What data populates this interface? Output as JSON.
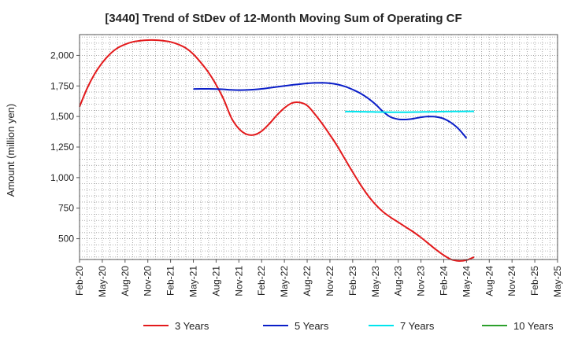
{
  "chart_data": {
    "type": "line",
    "title": "[3440]  Trend of StDev of 12-Month Moving Sum of Operating CF",
    "xlabel": "",
    "ylabel": "Amount (million yen)",
    "ylim": [
      330,
      2170
    ],
    "yticks": [
      500,
      750,
      1000,
      1250,
      1500,
      1750,
      2000
    ],
    "ytick_labels": [
      "500",
      "750",
      "1,000",
      "1,250",
      "1,500",
      "1,750",
      "2,000"
    ],
    "xticks": [
      "Feb-20",
      "May-20",
      "Aug-20",
      "Nov-20",
      "Feb-21",
      "May-21",
      "Aug-21",
      "Nov-21",
      "Feb-22",
      "May-22",
      "Aug-22",
      "Nov-22",
      "Feb-23",
      "May-23",
      "Aug-23",
      "Nov-23",
      "Feb-24",
      "May-24",
      "Aug-24",
      "Nov-24",
      "Feb-25",
      "May-25"
    ],
    "grid": true,
    "legend_position": "bottom",
    "series": [
      {
        "name": "3 Years",
        "color": "#e31a1c",
        "points": [
          [
            0,
            1580
          ],
          [
            1,
            1730
          ],
          [
            2,
            1850
          ],
          [
            3,
            1940
          ],
          [
            4,
            2010
          ],
          [
            5,
            2060
          ],
          [
            6,
            2090
          ],
          [
            7,
            2110
          ],
          [
            8,
            2120
          ],
          [
            9,
            2125
          ],
          [
            10,
            2125
          ],
          [
            11,
            2120
          ],
          [
            12,
            2110
          ],
          [
            13,
            2090
          ],
          [
            14,
            2060
          ],
          [
            15,
            2010
          ],
          [
            16,
            1940
          ],
          [
            17,
            1860
          ],
          [
            18,
            1760
          ],
          [
            19,
            1640
          ],
          [
            20,
            1490
          ],
          [
            21,
            1400
          ],
          [
            22,
            1355
          ],
          [
            23,
            1350
          ],
          [
            24,
            1380
          ],
          [
            25,
            1440
          ],
          [
            26,
            1510
          ],
          [
            27,
            1570
          ],
          [
            28,
            1610
          ],
          [
            29,
            1615
          ],
          [
            30,
            1590
          ],
          [
            31,
            1520
          ],
          [
            32,
            1440
          ],
          [
            33,
            1350
          ],
          [
            34,
            1255
          ],
          [
            35,
            1150
          ],
          [
            36,
            1045
          ],
          [
            37,
            945
          ],
          [
            38,
            855
          ],
          [
            39,
            780
          ],
          [
            40,
            720
          ],
          [
            41,
            675
          ],
          [
            42,
            635
          ],
          [
            43,
            595
          ],
          [
            44,
            555
          ],
          [
            45,
            510
          ],
          [
            46,
            460
          ],
          [
            47,
            410
          ],
          [
            48,
            365
          ],
          [
            49,
            330
          ],
          [
            50,
            318
          ],
          [
            51,
            325
          ],
          [
            52,
            350
          ]
        ]
      },
      {
        "name": "5 Years",
        "color": "#0a1ec8",
        "points": [
          [
            15,
            1725
          ],
          [
            16,
            1726
          ],
          [
            17,
            1726
          ],
          [
            18,
            1725
          ],
          [
            19,
            1722
          ],
          [
            20,
            1718
          ],
          [
            21,
            1716
          ],
          [
            22,
            1717
          ],
          [
            23,
            1720
          ],
          [
            24,
            1726
          ],
          [
            25,
            1734
          ],
          [
            26,
            1742
          ],
          [
            27,
            1750
          ],
          [
            28,
            1758
          ],
          [
            29,
            1765
          ],
          [
            30,
            1771
          ],
          [
            31,
            1775
          ],
          [
            32,
            1776
          ],
          [
            33,
            1772
          ],
          [
            34,
            1762
          ],
          [
            35,
            1745
          ],
          [
            36,
            1720
          ],
          [
            37,
            1690
          ],
          [
            38,
            1650
          ],
          [
            39,
            1600
          ],
          [
            40,
            1540
          ],
          [
            41,
            1495
          ],
          [
            42,
            1478
          ],
          [
            43,
            1475
          ],
          [
            44,
            1482
          ],
          [
            45,
            1494
          ],
          [
            46,
            1500
          ],
          [
            47,
            1497
          ],
          [
            48,
            1482
          ],
          [
            49,
            1448
          ],
          [
            50,
            1396
          ],
          [
            51,
            1322
          ]
        ]
      },
      {
        "name": "7 Years",
        "color": "#00e5ee",
        "points": [
          [
            35,
            1540
          ],
          [
            36,
            1540
          ],
          [
            37,
            1539
          ],
          [
            38,
            1538
          ],
          [
            39,
            1537
          ],
          [
            40,
            1536
          ],
          [
            41,
            1535
          ],
          [
            42,
            1535
          ],
          [
            43,
            1535
          ],
          [
            44,
            1536
          ],
          [
            45,
            1537
          ],
          [
            46,
            1538
          ],
          [
            47,
            1539
          ],
          [
            48,
            1540
          ],
          [
            49,
            1541
          ],
          [
            50,
            1541
          ],
          [
            51,
            1542
          ],
          [
            52,
            1542
          ]
        ]
      },
      {
        "name": "10 Years",
        "color": "#2ca02c",
        "points": []
      }
    ]
  }
}
